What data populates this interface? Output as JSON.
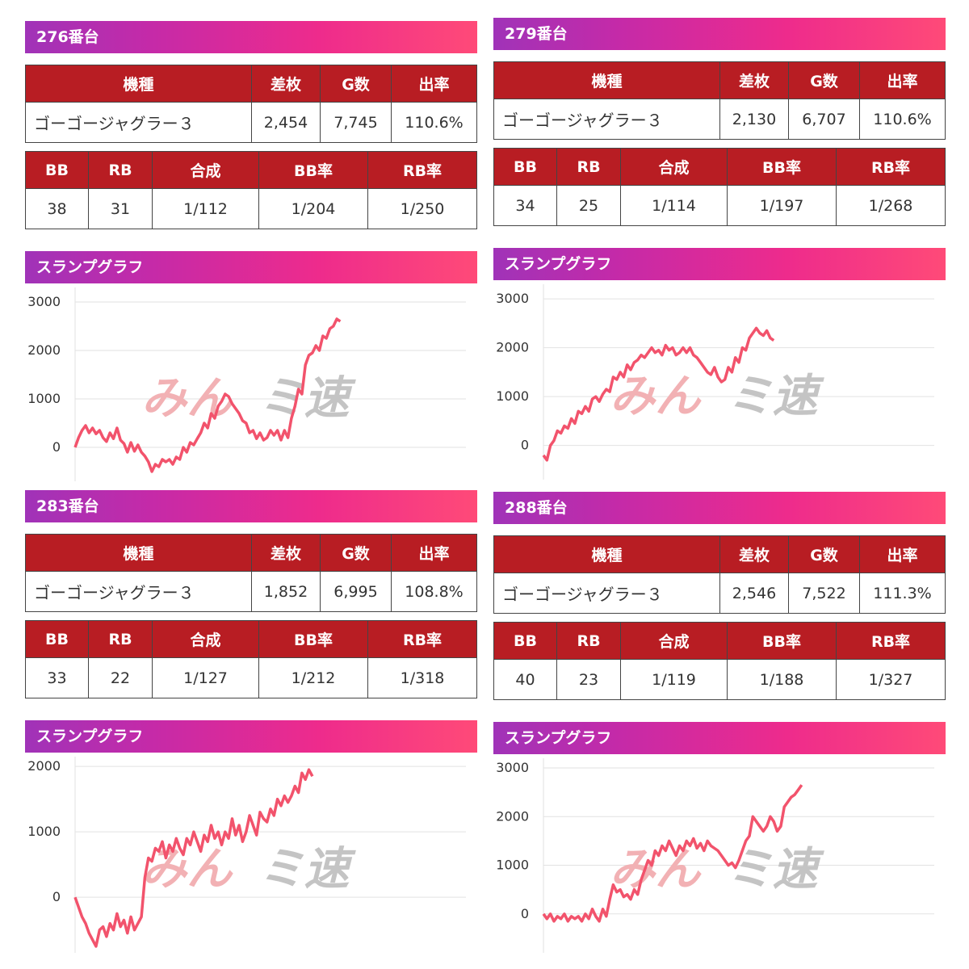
{
  "watermark": {
    "left": "みん",
    "right": "ミ速"
  },
  "machines": [
    {
      "unit": "276番台",
      "table1": {
        "headers": [
          "機種",
          "差枚",
          "G数",
          "出率"
        ],
        "values": [
          "ゴーゴージャグラー３",
          "2,454",
          "7,745",
          "110.6%"
        ]
      },
      "table2": {
        "headers": [
          "BB",
          "RB",
          "合成",
          "BB率",
          "RB率"
        ],
        "values": [
          "38",
          "31",
          "1/112",
          "1/204",
          "1/250"
        ]
      },
      "graph_title": "スランプグラフ",
      "chart_data": {
        "type": "line",
        "yticks": [
          "3000",
          "2000",
          "1000",
          "0"
        ],
        "ylim": [
          -700,
          3300
        ],
        "x": [
          0,
          5,
          10,
          15,
          20,
          25,
          30,
          35,
          40,
          45,
          50,
          55,
          60,
          65,
          70,
          75,
          80,
          85,
          90,
          95,
          100,
          105,
          110,
          115,
          120,
          125,
          130,
          135,
          140,
          145,
          150,
          155,
          160,
          165,
          170,
          175,
          180,
          185,
          190,
          195,
          200,
          205,
          210,
          215,
          220,
          225,
          230,
          235,
          240,
          245,
          250,
          255,
          260,
          265,
          270,
          275,
          280,
          285,
          290,
          295,
          300,
          305,
          310,
          315,
          320,
          325,
          330,
          335,
          340,
          345,
          350,
          355,
          360,
          365,
          370,
          375,
          380
        ],
        "values": [
          0,
          200,
          350,
          450,
          300,
          400,
          280,
          350,
          200,
          120,
          300,
          180,
          400,
          150,
          80,
          -100,
          100,
          -80,
          50,
          -100,
          -180,
          -300,
          -500,
          -350,
          -400,
          -250,
          -300,
          -250,
          -350,
          -200,
          -250,
          0,
          -100,
          100,
          50,
          180,
          300,
          500,
          400,
          700,
          600,
          850,
          950,
          1100,
          1050,
          900,
          800,
          700,
          550,
          500,
          300,
          350,
          180,
          300,
          150,
          200,
          350,
          250,
          350,
          150,
          350,
          200,
          600,
          850,
          1200,
          1100,
          1700,
          1900,
          1950,
          2100,
          2000,
          2300,
          2250,
          2450,
          2500,
          2650,
          2600
        ]
      }
    },
    {
      "unit": "279番台",
      "table1": {
        "headers": [
          "機種",
          "差枚",
          "G数",
          "出率"
        ],
        "values": [
          "ゴーゴージャグラー３",
          "2,130",
          "6,707",
          "110.6%"
        ]
      },
      "table2": {
        "headers": [
          "BB",
          "RB",
          "合成",
          "BB率",
          "RB率"
        ],
        "values": [
          "34",
          "25",
          "1/114",
          "1/197",
          "1/268"
        ]
      },
      "graph_title": "スランプグラフ",
      "chart_data": {
        "type": "line",
        "yticks": [
          "3000",
          "2000",
          "1000",
          "0"
        ],
        "ylim": [
          -700,
          3300
        ],
        "x": [
          0,
          5,
          10,
          15,
          20,
          25,
          30,
          35,
          40,
          45,
          50,
          55,
          60,
          65,
          70,
          75,
          80,
          85,
          90,
          95,
          100,
          105,
          110,
          115,
          120,
          125,
          130,
          135,
          140,
          145,
          150,
          155,
          160,
          165,
          170,
          175,
          180,
          185,
          190,
          195,
          200,
          205,
          210,
          215,
          220,
          225,
          230,
          235,
          240,
          245,
          250,
          255,
          260,
          265,
          270,
          275,
          280,
          285,
          290,
          295,
          300,
          305,
          310,
          315,
          320,
          325,
          330
        ],
        "values": [
          -200,
          -300,
          0,
          100,
          300,
          250,
          400,
          350,
          550,
          450,
          700,
          650,
          800,
          700,
          950,
          1000,
          900,
          1050,
          1150,
          1100,
          1400,
          1350,
          1500,
          1400,
          1650,
          1550,
          1700,
          1750,
          1850,
          1800,
          1900,
          2000,
          1900,
          1950,
          1850,
          2050,
          1950,
          2000,
          1850,
          1900,
          2000,
          1900,
          2000,
          1850,
          1800,
          1700,
          1600,
          1500,
          1450,
          1600,
          1400,
          1300,
          1350,
          1600,
          1500,
          1800,
          1700,
          2000,
          1950,
          2200,
          2300,
          2400,
          2300,
          2250,
          2350,
          2200,
          2150
        ]
      }
    },
    {
      "unit": "283番台",
      "table1": {
        "headers": [
          "機種",
          "差枚",
          "G数",
          "出率"
        ],
        "values": [
          "ゴーゴージャグラー３",
          "1,852",
          "6,995",
          "108.8%"
        ]
      },
      "table2": {
        "headers": [
          "BB",
          "RB",
          "合成",
          "BB率",
          "RB率"
        ],
        "values": [
          "33",
          "22",
          "1/127",
          "1/212",
          "1/318"
        ]
      },
      "graph_title": "スランプグラフ",
      "chart_data": {
        "type": "line",
        "yticks": [
          "2000",
          "1000",
          "0"
        ],
        "ylim": [
          -850,
          2150
        ],
        "x": [
          0,
          5,
          10,
          15,
          20,
          25,
          30,
          35,
          40,
          45,
          50,
          55,
          60,
          65,
          70,
          75,
          80,
          85,
          90,
          95,
          100,
          105,
          110,
          115,
          120,
          125,
          130,
          135,
          140,
          145,
          150,
          155,
          160,
          165,
          170,
          175,
          180,
          185,
          190,
          195,
          200,
          205,
          210,
          215,
          220,
          225,
          230,
          235,
          240,
          245,
          250,
          255,
          260,
          265,
          270,
          275,
          280,
          285,
          290,
          295,
          300,
          305,
          310,
          315,
          320,
          325,
          330,
          335,
          340
        ],
        "values": [
          0,
          -150,
          -300,
          -400,
          -550,
          -650,
          -750,
          -500,
          -450,
          -600,
          -400,
          -500,
          -250,
          -450,
          -350,
          -550,
          -300,
          -500,
          -400,
          -300,
          300,
          600,
          550,
          750,
          700,
          850,
          600,
          800,
          700,
          900,
          750,
          650,
          900,
          800,
          1000,
          850,
          700,
          950,
          850,
          1100,
          900,
          1000,
          800,
          1000,
          900,
          1200,
          950,
          1100,
          850,
          1000,
          1250,
          1100,
          950,
          1300,
          1200,
          1150,
          1350,
          1250,
          1500,
          1400,
          1550,
          1450,
          1550,
          1700,
          1600,
          1900,
          1800,
          1950,
          1850
        ]
      }
    },
    {
      "unit": "288番台",
      "table1": {
        "headers": [
          "機種",
          "差枚",
          "G数",
          "出率"
        ],
        "values": [
          "ゴーゴージャグラー３",
          "2,546",
          "7,522",
          "111.3%"
        ]
      },
      "table2": {
        "headers": [
          "BB",
          "RB",
          "合成",
          "BB率",
          "RB率"
        ],
        "values": [
          "40",
          "23",
          "1/119",
          "1/188",
          "1/327"
        ]
      },
      "graph_title": "スランプグラフ",
      "chart_data": {
        "type": "line",
        "yticks": [
          "3000",
          "2000",
          "1000",
          "0"
        ],
        "ylim": [
          -800,
          3200
        ],
        "x": [
          0,
          5,
          10,
          15,
          20,
          25,
          30,
          35,
          40,
          45,
          50,
          55,
          60,
          65,
          70,
          75,
          80,
          85,
          90,
          95,
          100,
          105,
          110,
          115,
          120,
          125,
          130,
          135,
          140,
          145,
          150,
          155,
          160,
          165,
          170,
          175,
          180,
          185,
          190,
          195,
          200,
          205,
          210,
          215,
          220,
          225,
          230,
          235,
          240,
          245,
          250,
          255,
          260,
          265,
          270,
          275,
          280,
          285,
          290,
          295,
          300,
          305,
          310,
          315,
          320,
          325,
          330,
          335,
          340,
          345,
          350,
          355,
          360,
          365,
          370
        ],
        "values": [
          0,
          -100,
          0,
          -150,
          -50,
          -100,
          0,
          -150,
          -50,
          -100,
          -50,
          -150,
          0,
          -100,
          100,
          -50,
          -150,
          100,
          -50,
          300,
          600,
          450,
          500,
          350,
          400,
          300,
          500,
          400,
          700,
          900,
          1100,
          1000,
          1300,
          1200,
          1400,
          1300,
          1500,
          1350,
          1200,
          1400,
          1300,
          1500,
          1400,
          1550,
          1350,
          1450,
          1300,
          1500,
          1400,
          1350,
          1300,
          1200,
          1100,
          1000,
          1050,
          950,
          1100,
          1300,
          1500,
          1600,
          2000,
          1900,
          1800,
          1700,
          1800,
          2000,
          1900,
          1700,
          1800,
          2200,
          2300,
          2400,
          2450,
          2550,
          2650
        ]
      }
    }
  ]
}
